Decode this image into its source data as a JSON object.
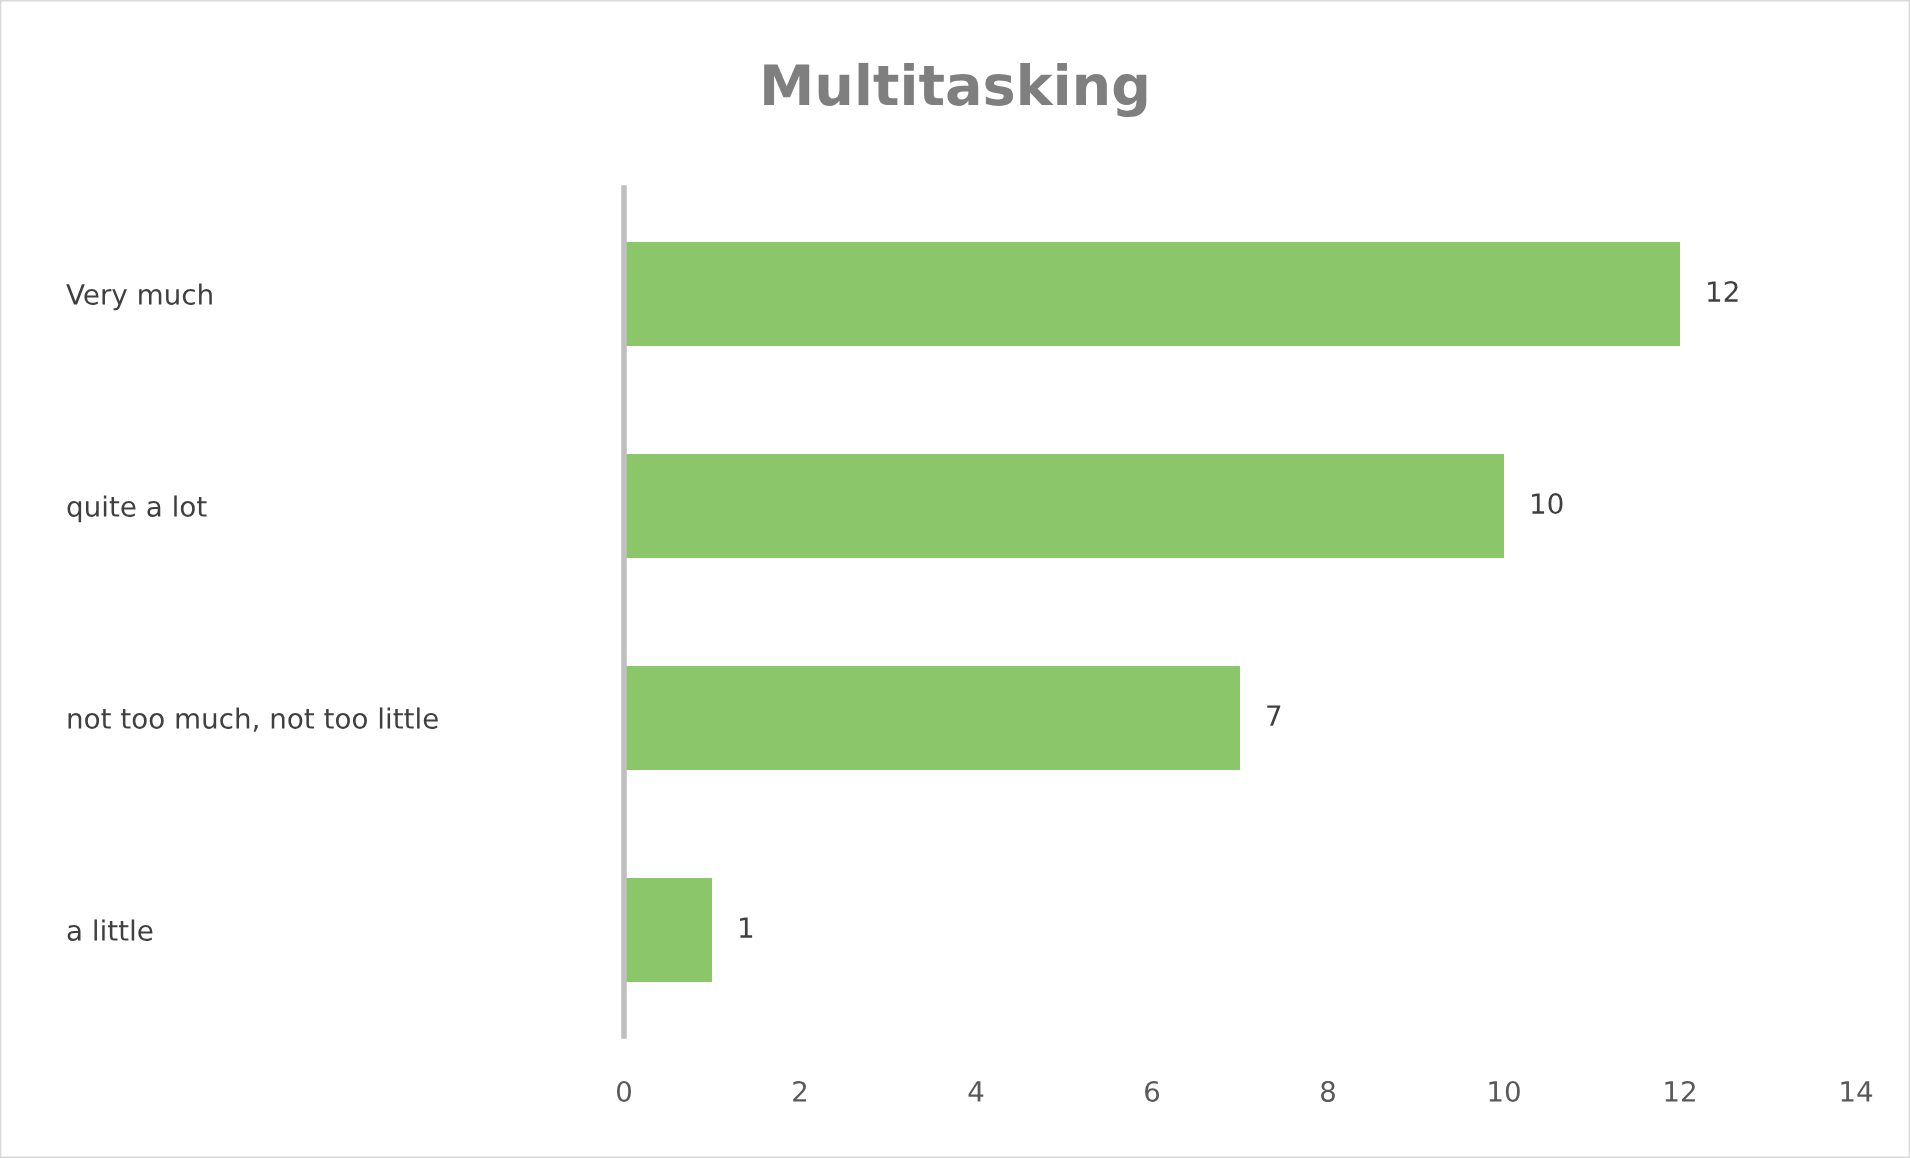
{
  "chart_data": {
    "type": "bar",
    "orientation": "horizontal",
    "title": "Multitasking",
    "categories": [
      "Very much",
      "quite a lot",
      "not too much, not too little",
      "a little"
    ],
    "values": [
      12,
      10,
      7,
      1
    ],
    "color": "#8cc66a",
    "xlim": [
      0,
      14
    ],
    "xticks": [
      0,
      2,
      4,
      6,
      8,
      10,
      12,
      14
    ],
    "grid": false,
    "data_labels": true
  }
}
